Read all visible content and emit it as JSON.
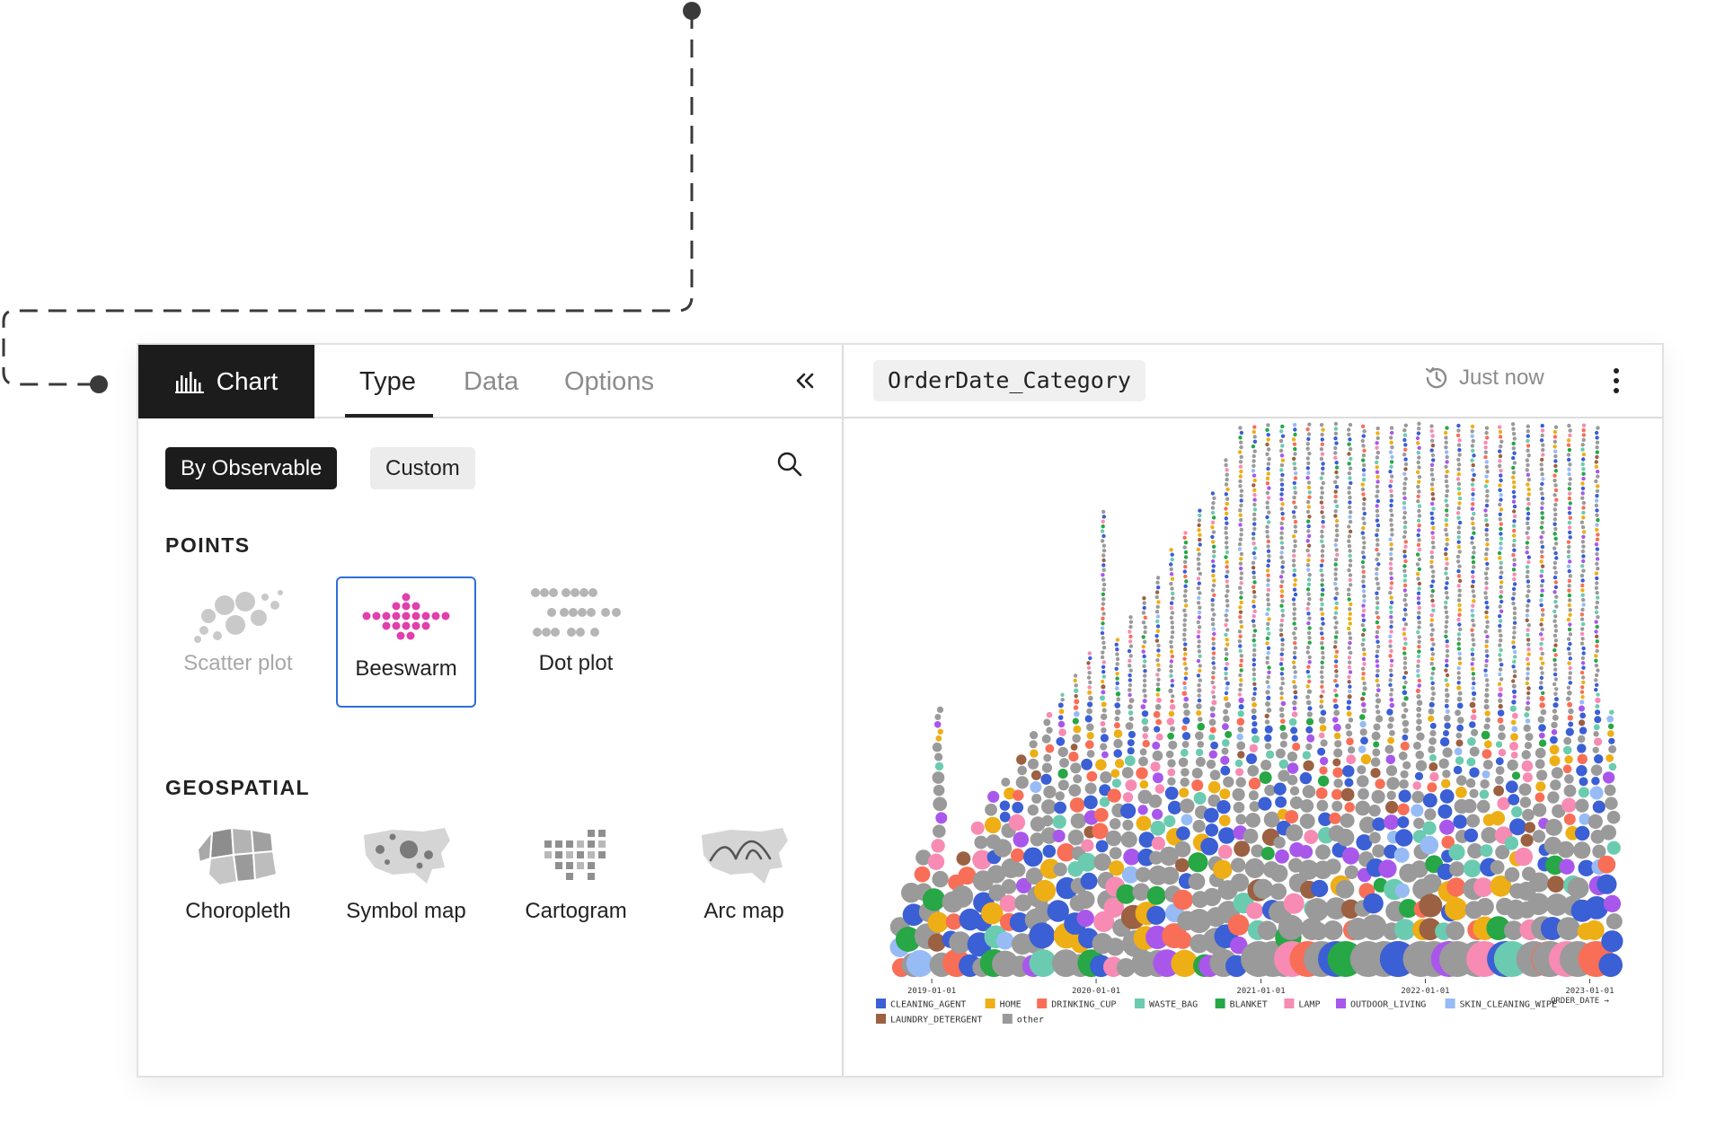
{
  "left_panel": {
    "chart_tab_label": "Chart",
    "tabs": [
      {
        "label": "Type",
        "active": true
      },
      {
        "label": "Data",
        "active": false
      },
      {
        "label": "Options",
        "active": false
      }
    ],
    "filters": [
      {
        "label": "By Observable",
        "selected": true
      },
      {
        "label": "Custom",
        "selected": false
      }
    ],
    "sections": [
      {
        "title": "POINTS",
        "items": [
          {
            "label": "Scatter plot",
            "icon": "scatter-plot-icon",
            "state": "disabled"
          },
          {
            "label": "Beeswarm",
            "icon": "beeswarm-icon",
            "state": "selected"
          },
          {
            "label": "Dot plot",
            "icon": "dot-plot-icon",
            "state": "normal"
          }
        ]
      },
      {
        "title": "GEOSPATIAL",
        "items": [
          {
            "label": "Choropleth",
            "icon": "choropleth-icon",
            "state": "normal"
          },
          {
            "label": "Symbol map",
            "icon": "symbol-map-icon",
            "state": "normal"
          },
          {
            "label": "Cartogram",
            "icon": "cartogram-icon",
            "state": "normal"
          },
          {
            "label": "Arc map",
            "icon": "arc-map-icon",
            "state": "normal"
          }
        ]
      }
    ],
    "accent_color": "#2d6fdb",
    "beeswarm_icon_color": "#e03fac"
  },
  "right_panel": {
    "title": "OrderDate_Category",
    "timestamp": "Just now",
    "chart_data": {
      "type": "scatter",
      "subtype": "beeswarm",
      "xlabel": "ORDER_DATE →",
      "x_ticks": [
        "2019-01-01",
        "2020-01-01",
        "2021-01-01",
        "2022-01-01",
        "2023-01-01"
      ],
      "x_range": [
        "2018-10-01",
        "2023-03-01"
      ],
      "legend": [
        {
          "name": "CLEANING_AGENT",
          "color": "#3b5fd4"
        },
        {
          "name": "HOME",
          "color": "#eeae16"
        },
        {
          "name": "DRINKING_CUP",
          "color": "#f96e57"
        },
        {
          "name": "WASTE_BAG",
          "color": "#6bcbb0"
        },
        {
          "name": "BLANKET",
          "color": "#27a745"
        },
        {
          "name": "LAMP",
          "color": "#f78bb4"
        },
        {
          "name": "OUTDOOR_LIVING",
          "color": "#a957eb"
        },
        {
          "name": "SKIN_CLEANING_WIPE",
          "color": "#97bbf5"
        },
        {
          "name": "LAUNDRY_DETERGENT",
          "color": "#9b6142"
        },
        {
          "name": "other",
          "color": "#9a9a9a"
        }
      ],
      "legend_position": "bottom-left",
      "grid": false,
      "approx_monthly_dot_counts": [
        [
          "2018-10",
          3
        ],
        [
          "2018-11",
          4
        ],
        [
          "2018-12",
          6
        ],
        [
          "2019-01",
          20
        ],
        [
          "2019-02",
          5
        ],
        [
          "2019-03",
          6
        ],
        [
          "2019-04",
          8
        ],
        [
          "2019-05",
          10
        ],
        [
          "2019-06",
          12
        ],
        [
          "2019-07",
          14
        ],
        [
          "2019-08",
          16
        ],
        [
          "2019-09",
          18
        ],
        [
          "2019-10",
          22
        ],
        [
          "2019-11",
          26
        ],
        [
          "2019-12",
          30
        ],
        [
          "2020-01",
          60
        ],
        [
          "2020-02",
          34
        ],
        [
          "2020-03",
          38
        ],
        [
          "2020-04",
          42
        ],
        [
          "2020-05",
          46
        ],
        [
          "2020-06",
          52
        ],
        [
          "2020-07",
          56
        ],
        [
          "2020-08",
          60
        ],
        [
          "2020-09",
          64
        ],
        [
          "2020-10",
          70
        ],
        [
          "2020-11",
          78
        ],
        [
          "2020-12",
          90
        ],
        [
          "2021-01",
          140
        ],
        [
          "2021-02",
          80
        ],
        [
          "2021-03",
          100
        ],
        [
          "2021-04",
          110
        ],
        [
          "2021-05",
          120
        ],
        [
          "2021-06",
          115
        ],
        [
          "2021-07",
          130
        ],
        [
          "2021-08",
          125
        ],
        [
          "2021-09",
          120
        ],
        [
          "2021-10",
          118
        ],
        [
          "2021-11",
          120
        ],
        [
          "2021-12",
          110
        ],
        [
          "2022-01",
          160
        ],
        [
          "2022-02",
          90
        ],
        [
          "2022-03",
          100
        ],
        [
          "2022-04",
          105
        ],
        [
          "2022-05",
          110
        ],
        [
          "2022-06",
          120
        ],
        [
          "2022-07",
          130
        ],
        [
          "2022-08",
          125
        ],
        [
          "2022-09",
          135
        ],
        [
          "2022-10",
          140
        ],
        [
          "2022-11",
          120
        ],
        [
          "2022-12",
          130
        ],
        [
          "2023-01",
          100
        ],
        [
          "2023-02",
          20
        ]
      ]
    }
  }
}
